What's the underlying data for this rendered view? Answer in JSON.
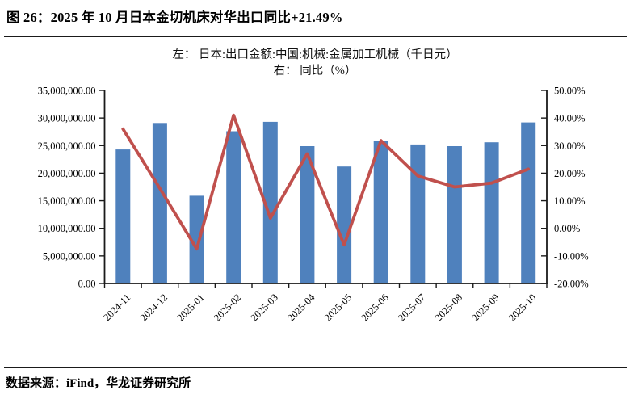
{
  "title": "图 26：2025 年 10 月日本金切机床对华出口同比+21.49%",
  "legend": {
    "line1": "左： 日本:出口金额:中国:机械:金属加工机械（千日元）",
    "line2": "右： 同比（%）"
  },
  "source": "数据来源：iFind，华龙证券研究所",
  "colors": {
    "bar": "#4F81BD",
    "line": "#C0504D",
    "axis": "#1a1a1a",
    "text": "#000000"
  },
  "chart_data": {
    "type": "bar+line combo",
    "categories": [
      "2024-11",
      "2024-12",
      "2025-01",
      "2025-02",
      "2025-03",
      "2025-04",
      "2025-05",
      "2025-06",
      "2025-07",
      "2025-08",
      "2025-09",
      "2025-10"
    ],
    "series": [
      {
        "name": "日本:出口金额:中国:机械:金属加工机械（千日元）",
        "type": "bar",
        "axis": "left",
        "values": [
          24300000,
          29100000,
          15900000,
          27600000,
          29300000,
          24900000,
          21200000,
          25800000,
          25200000,
          24900000,
          25600000,
          29200000
        ]
      },
      {
        "name": "同比（%）",
        "type": "line",
        "axis": "right",
        "values": [
          36.0,
          14.5,
          -7.5,
          41.0,
          3.7,
          27.0,
          -6.0,
          31.8,
          19.0,
          15.0,
          16.4,
          21.49
        ]
      }
    ],
    "left_axis": {
      "min": 0,
      "max": 35000000,
      "step": 5000000,
      "tick_labels": [
        "35,000,000.00",
        "30,000,000.00",
        "25,000,000.00",
        "20,000,000.00",
        "15,000,000.00",
        "10,000,000.00",
        "5,000,000.00",
        "0.00"
      ]
    },
    "right_axis": {
      "min": -20,
      "max": 50,
      "step": 10,
      "tick_labels": [
        "50.00%",
        "40.00%",
        "30.00%",
        "20.00%",
        "10.00%",
        "0.00%",
        "-10.00%",
        "-20.00%"
      ]
    },
    "grid": "off",
    "legend_position": "top-center"
  }
}
